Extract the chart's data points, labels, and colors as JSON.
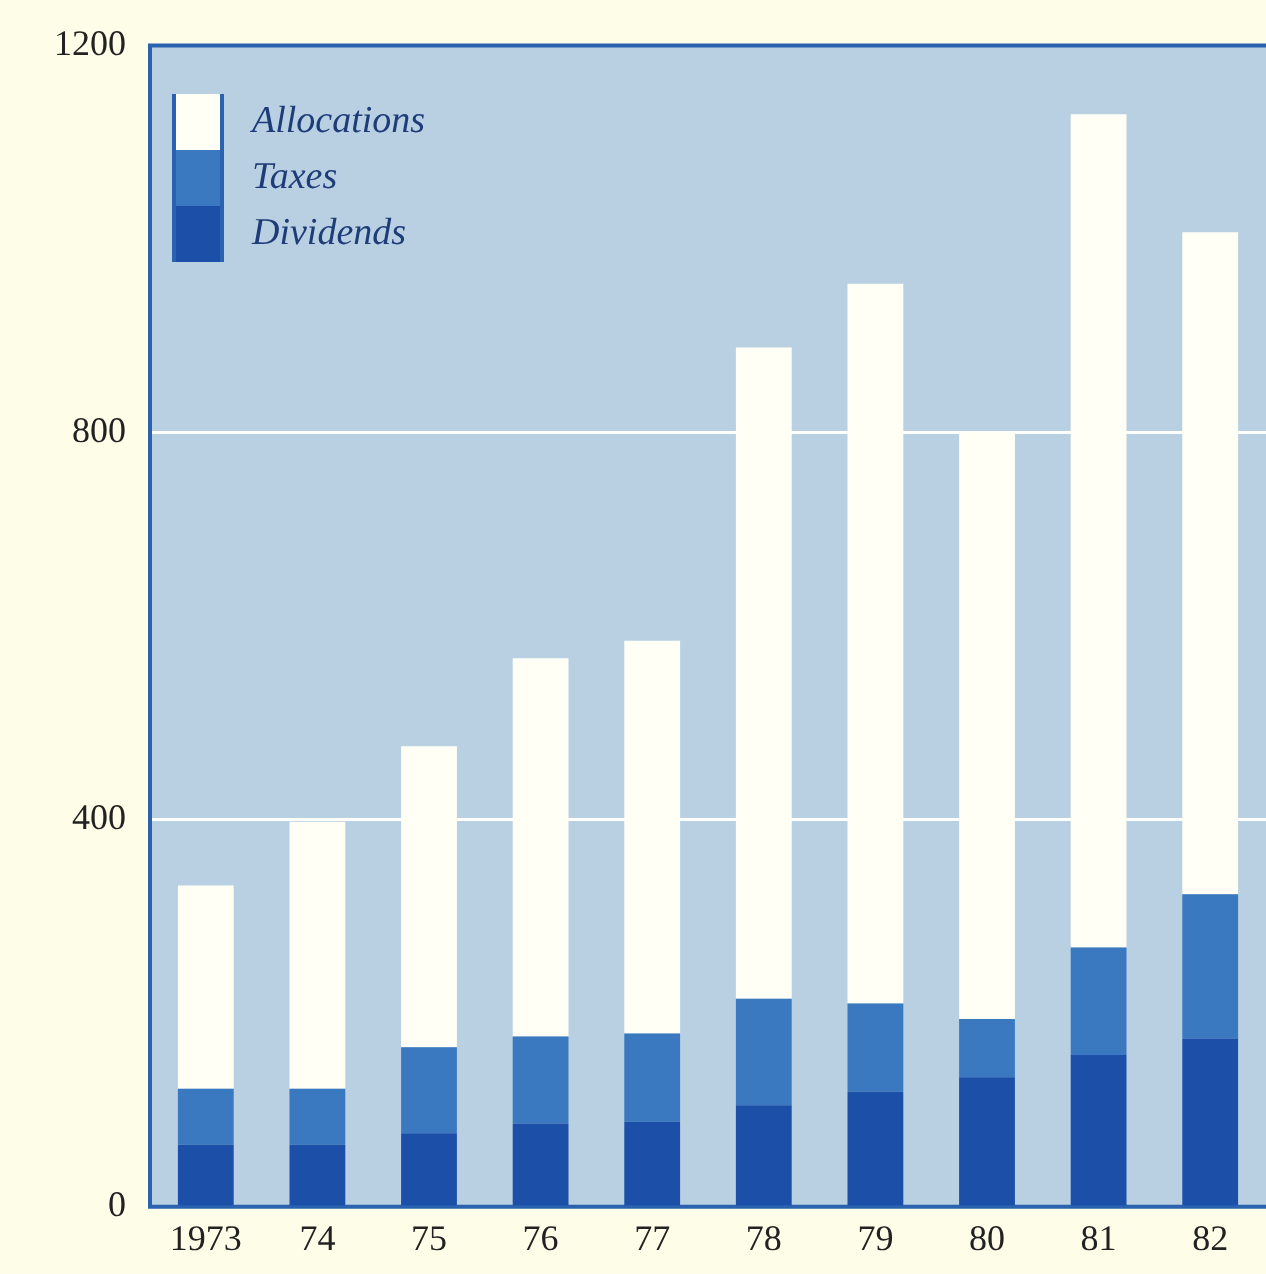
{
  "chart_data": {
    "type": "bar",
    "stacked": true,
    "categories": [
      "1973",
      "74",
      "75",
      "76",
      "77",
      "78",
      "79",
      "80",
      "81",
      "82"
    ],
    "series": [
      {
        "name": "Dividends",
        "color": "#1b4fa8",
        "values": [
          64,
          64,
          76,
          86,
          88,
          105,
          119,
          134,
          157,
          174
        ]
      },
      {
        "name": "Taxes",
        "color": "#3a78c0",
        "values": [
          58,
          58,
          89,
          90,
          91,
          110,
          91,
          60,
          111,
          149
        ]
      },
      {
        "name": "Allocations",
        "color": "#fffff5",
        "values": [
          210,
          276,
          311,
          391,
          406,
          673,
          744,
          607,
          861,
          684
        ]
      }
    ],
    "ylim": [
      0,
      1200
    ],
    "yticks": [
      0,
      400,
      800,
      1200
    ],
    "grid": "y",
    "legend": "top left"
  }
}
